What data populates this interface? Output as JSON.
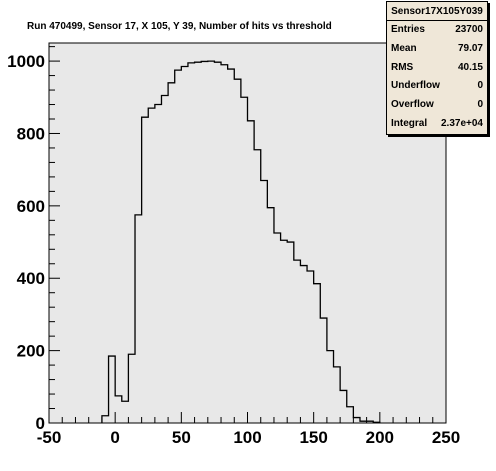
{
  "title": "Run 470499, Sensor 17, X 105, Y 39, Number of hits vs threshold",
  "stats_box": {
    "name": "Sensor17X105Y039",
    "rows": [
      {
        "label": "Entries",
        "value": "23700"
      },
      {
        "label": "Mean",
        "value": "79.07"
      },
      {
        "label": "RMS",
        "value": "40.15"
      },
      {
        "label": "Underflow",
        "value": "0"
      },
      {
        "label": "Overflow",
        "value": "0"
      },
      {
        "label": "Integral",
        "value": "2.37e+04"
      }
    ]
  },
  "colors": {
    "frame_fill": "#e8e8e8",
    "line": "#000000",
    "stats_fill": "#efe7d8"
  },
  "chart_data": {
    "type": "histogram",
    "title": "Run 470499, Sensor 17, X 105, Y 39, Number of hits vs threshold",
    "xlabel": "",
    "ylabel": "",
    "xlim": [
      -50,
      250
    ],
    "ylim": [
      0,
      1050
    ],
    "x_ticks": [
      -50,
      0,
      50,
      100,
      150,
      200,
      250
    ],
    "y_ticks": [
      0,
      200,
      400,
      600,
      800,
      1000
    ],
    "bin_width": 5,
    "bins": [
      {
        "x0": -10,
        "y": 20
      },
      {
        "x0": -5,
        "y": 185
      },
      {
        "x0": 0,
        "y": 75
      },
      {
        "x0": 5,
        "y": 60
      },
      {
        "x0": 10,
        "y": 190
      },
      {
        "x0": 15,
        "y": 575
      },
      {
        "x0": 20,
        "y": 845
      },
      {
        "x0": 25,
        "y": 870
      },
      {
        "x0": 30,
        "y": 880
      },
      {
        "x0": 35,
        "y": 905
      },
      {
        "x0": 40,
        "y": 940
      },
      {
        "x0": 45,
        "y": 975
      },
      {
        "x0": 50,
        "y": 985
      },
      {
        "x0": 55,
        "y": 995
      },
      {
        "x0": 60,
        "y": 997
      },
      {
        "x0": 65,
        "y": 999
      },
      {
        "x0": 70,
        "y": 1000
      },
      {
        "x0": 75,
        "y": 997
      },
      {
        "x0": 80,
        "y": 990
      },
      {
        "x0": 85,
        "y": 978
      },
      {
        "x0": 90,
        "y": 950
      },
      {
        "x0": 95,
        "y": 900
      },
      {
        "x0": 100,
        "y": 835
      },
      {
        "x0": 105,
        "y": 755
      },
      {
        "x0": 110,
        "y": 670
      },
      {
        "x0": 115,
        "y": 595
      },
      {
        "x0": 120,
        "y": 525
      },
      {
        "x0": 125,
        "y": 505
      },
      {
        "x0": 130,
        "y": 500
      },
      {
        "x0": 135,
        "y": 450
      },
      {
        "x0": 140,
        "y": 435
      },
      {
        "x0": 145,
        "y": 420
      },
      {
        "x0": 150,
        "y": 385
      },
      {
        "x0": 155,
        "y": 290
      },
      {
        "x0": 160,
        "y": 200
      },
      {
        "x0": 165,
        "y": 155
      },
      {
        "x0": 170,
        "y": 90
      },
      {
        "x0": 175,
        "y": 45
      },
      {
        "x0": 180,
        "y": 15
      },
      {
        "x0": 185,
        "y": 5
      },
      {
        "x0": 190,
        "y": 5
      },
      {
        "x0": 195,
        "y": 2
      }
    ]
  }
}
